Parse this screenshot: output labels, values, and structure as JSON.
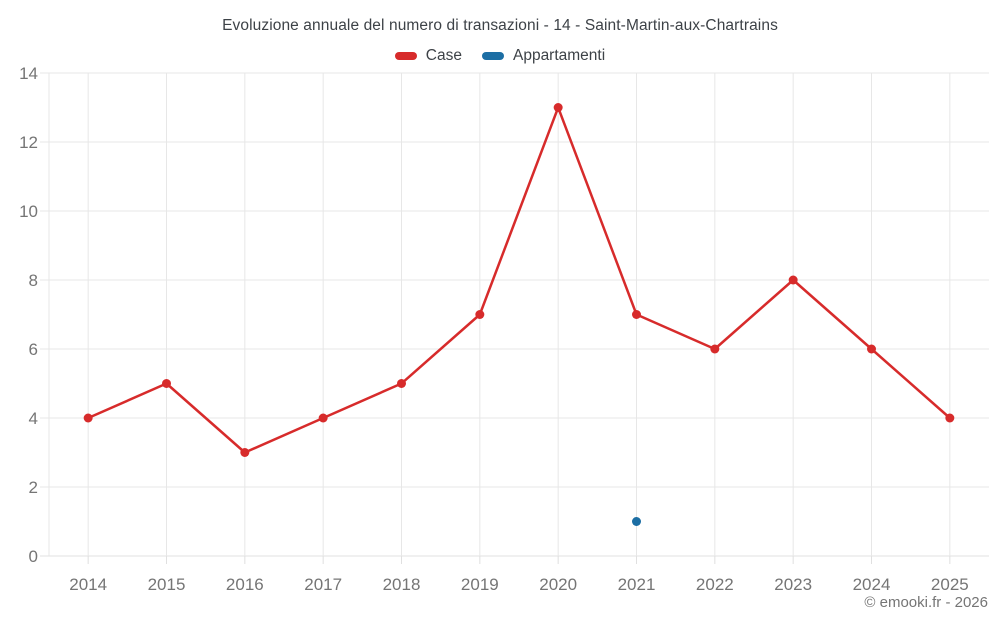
{
  "title": "Evoluzione annuale del numero di transazioni - 14 - Saint-Martin-aux-Chartrains",
  "footer": "© emooki.fr - 2026",
  "colors": {
    "case_red": "#d72b2b",
    "appartamenti_blue": "#1c6ea4",
    "grid": "#e7e7e7",
    "axis_line": "#e0e0e0",
    "tick_label": "#757575",
    "title_text": "#3d4247"
  },
  "chart_data": {
    "type": "line",
    "title": "Evoluzione annuale del numero di transazioni - 14 - Saint-Martin-aux-Chartrains",
    "categories": [
      "2014",
      "2015",
      "2016",
      "2017",
      "2018",
      "2019",
      "2020",
      "2021",
      "2022",
      "2023",
      "2024",
      "2025"
    ],
    "series": [
      {
        "name": "Case",
        "color": "#d72b2b",
        "values": [
          4,
          5,
          3,
          4,
          5,
          7,
          13,
          7,
          6,
          8,
          6,
          4
        ]
      },
      {
        "name": "Appartamenti",
        "color": "#1c6ea4",
        "values": [
          null,
          null,
          null,
          null,
          null,
          null,
          null,
          1,
          null,
          null,
          null,
          null
        ]
      }
    ],
    "xlabel": "",
    "ylabel": "",
    "ylim": [
      0,
      14
    ],
    "ytick_step": 2,
    "grid": true,
    "legend_position": "top"
  }
}
